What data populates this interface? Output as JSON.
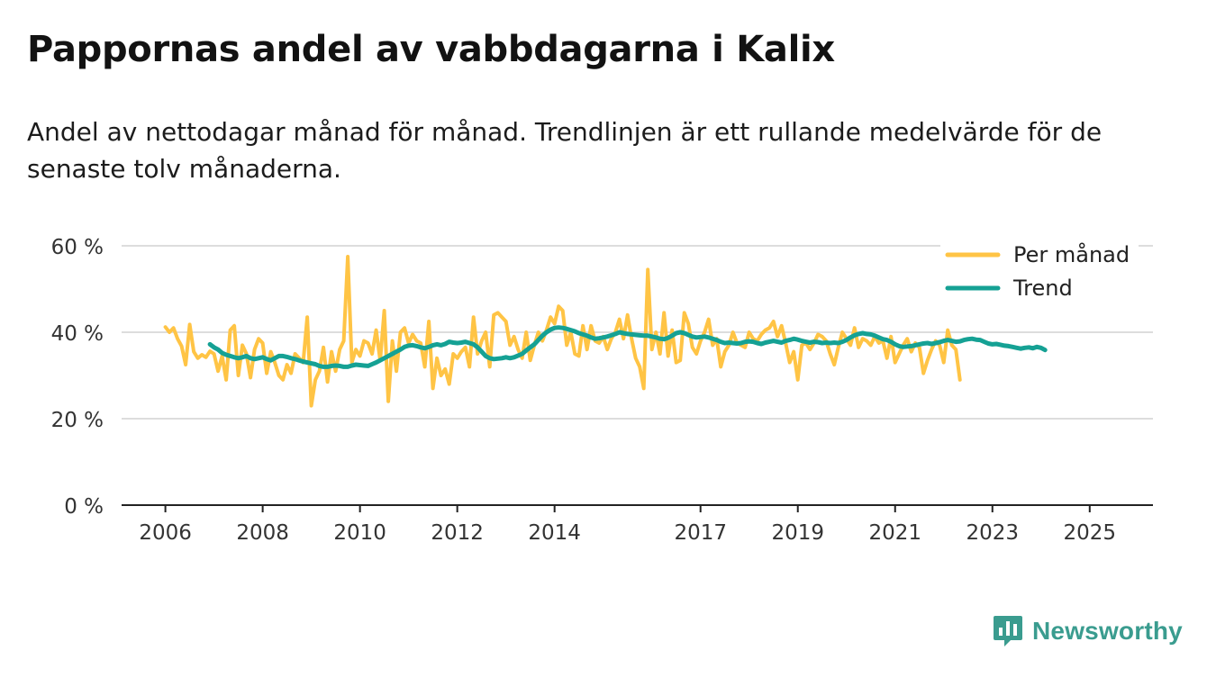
{
  "title": "Pappornas andel av vabbdagarna i Kalix",
  "subtitle": "Andel av nettodagar månad för månad. Trendlinjen är ett rullande medelvärde för de senaste tolv månaderna.",
  "brand": "Newsworthy",
  "colors": {
    "monthly": "#ffc445",
    "trend": "#15a194",
    "grid": "#dddddd",
    "axis": "#222222",
    "brand": "#3a9c8f"
  },
  "chart_data": {
    "type": "line",
    "x_unit": "year",
    "xlim": [
      2005.1,
      2026.3
    ],
    "ylim": [
      0,
      60
    ],
    "y_ticks": [
      0,
      20,
      40,
      60
    ],
    "y_tick_labels": [
      "0 %",
      "20 %",
      "40 %",
      "60 %"
    ],
    "x_ticks": [
      2006,
      2008,
      2010,
      2012,
      2014,
      2017,
      2019,
      2021,
      2023,
      2025
    ],
    "x_tick_labels": [
      "2006",
      "2008",
      "2010",
      "2012",
      "2014",
      "2017",
      "2019",
      "2021",
      "2023",
      "2025"
    ],
    "legend_position": "top-right",
    "series": [
      {
        "name": "Per månad",
        "x_start": 2006.0,
        "step": 0.08333,
        "values": [
          41.2,
          40.0,
          41.0,
          38.5,
          36.8,
          32.5,
          41.8,
          35.5,
          34.0,
          34.8,
          34.2,
          35.6,
          35.0,
          31.0,
          34.5,
          29.0,
          40.5,
          41.5,
          30.0,
          37.0,
          35.0,
          29.5,
          36.0,
          38.5,
          37.5,
          30.5,
          35.5,
          33.0,
          30.0,
          29.0,
          32.5,
          30.5,
          35.0,
          34.0,
          33.0,
          43.5,
          23.0,
          29.0,
          31.0,
          36.5,
          28.5,
          35.5,
          31.0,
          36.0,
          38.0,
          57.5,
          33.0,
          36.0,
          34.5,
          38.0,
          37.5,
          35.0,
          40.5,
          33.5,
          45.0,
          24.0,
          38.0,
          31.0,
          40.0,
          41.0,
          37.5,
          39.5,
          38.0,
          37.5,
          32.0,
          42.5,
          27.0,
          34.0,
          30.0,
          31.5,
          28.0,
          35.0,
          34.0,
          35.5,
          36.5,
          32.0,
          43.5,
          35.0,
          38.0,
          40.0,
          32.0,
          44.0,
          44.5,
          43.5,
          42.5,
          37.0,
          39.0,
          36.0,
          34.0,
          40.0,
          33.5,
          37.0,
          40.0,
          38.0,
          40.5,
          43.5,
          42.0,
          46.0,
          45.0,
          37.0,
          40.0,
          35.0,
          34.5,
          41.5,
          36.0,
          41.5,
          38.0,
          37.5,
          39.0,
          36.0,
          38.5,
          40.0,
          43.0,
          38.5,
          44.0,
          38.5,
          34.0,
          32.0,
          27.0,
          54.5,
          36.0,
          40.0,
          35.0,
          44.5,
          34.5,
          40.5,
          33.0,
          33.5,
          44.5,
          42.0,
          36.5,
          35.0,
          38.0,
          40.0,
          43.0,
          37.0,
          38.5,
          32.0,
          35.5,
          37.0,
          40.0,
          37.5,
          37.0,
          36.5,
          40.0,
          38.5,
          38.0,
          39.5,
          40.5,
          41.0,
          42.5,
          39.0,
          41.5,
          37.5,
          33.0,
          35.5,
          29.0,
          37.0,
          37.5,
          36.0,
          37.5,
          39.5,
          39.0,
          38.0,
          35.0,
          32.5,
          36.5,
          40.0,
          38.5,
          37.0,
          41.0,
          36.5,
          38.5,
          38.0,
          37.0,
          39.0,
          37.5,
          38.0,
          34.0,
          39.0,
          33.0,
          35.0,
          37.0,
          38.5,
          35.5,
          37.5,
          36.5,
          30.5,
          33.5,
          36.0,
          38.0,
          37.0,
          33.0,
          40.5,
          37.0,
          36.0,
          29.0
        ]
      },
      {
        "name": "Trend",
        "x_start": 2006.9167,
        "step": 0.08333,
        "values": [
          37.2,
          36.5,
          36.0,
          35.2,
          34.8,
          34.5,
          34.2,
          34.0,
          34.2,
          34.5,
          34.0,
          33.8,
          34.0,
          34.2,
          33.8,
          33.5,
          34.0,
          34.5,
          34.5,
          34.3,
          34.0,
          33.8,
          33.5,
          33.2,
          33.0,
          32.8,
          32.6,
          32.2,
          32.0,
          32.0,
          32.2,
          32.3,
          32.2,
          32.0,
          32.0,
          32.3,
          32.5,
          32.4,
          32.3,
          32.2,
          32.6,
          33.0,
          33.5,
          34.0,
          34.5,
          35.0,
          35.5,
          36.0,
          36.6,
          36.9,
          37.0,
          36.8,
          36.5,
          36.3,
          36.6,
          37.0,
          37.2,
          37.0,
          37.3,
          37.8,
          37.6,
          37.5,
          37.6,
          37.8,
          37.5,
          37.2,
          36.5,
          35.5,
          34.5,
          34.0,
          33.8,
          33.9,
          34.0,
          34.2,
          34.0,
          34.2,
          34.6,
          35.0,
          35.8,
          36.5,
          37.2,
          38.2,
          39.2,
          40.0,
          40.6,
          41.0,
          41.1,
          41.0,
          40.8,
          40.5,
          40.2,
          39.8,
          39.5,
          39.2,
          38.8,
          38.5,
          38.6,
          38.8,
          39.0,
          39.3,
          39.6,
          40.0,
          39.8,
          39.6,
          39.5,
          39.4,
          39.3,
          39.2,
          39.2,
          39.0,
          38.8,
          38.5,
          38.4,
          38.7,
          39.2,
          39.8,
          40.0,
          39.8,
          39.4,
          39.0,
          38.8,
          38.9,
          39.0,
          38.8,
          38.5,
          38.2,
          37.8,
          37.5,
          37.6,
          37.5,
          37.4,
          37.5,
          37.8,
          37.9,
          37.8,
          37.5,
          37.3,
          37.6,
          37.8,
          38.0,
          37.8,
          37.6,
          38.0,
          38.2,
          38.5,
          38.3,
          38.0,
          37.8,
          37.6,
          37.8,
          37.7,
          37.5,
          37.6,
          37.5,
          37.6,
          37.5,
          37.8,
          38.2,
          38.8,
          39.3,
          39.6,
          39.8,
          39.6,
          39.5,
          39.2,
          38.8,
          38.4,
          38.2,
          37.8,
          37.2,
          36.8,
          36.6,
          36.7,
          36.8,
          37.0,
          37.2,
          37.4,
          37.5,
          37.3,
          37.5,
          37.7,
          38.0,
          38.2,
          38.0,
          37.8,
          37.9,
          38.2,
          38.4,
          38.5,
          38.3,
          38.2,
          37.8,
          37.4,
          37.2,
          37.3,
          37.1,
          36.9,
          36.8,
          36.6,
          36.4,
          36.2,
          36.4,
          36.5,
          36.3,
          36.6,
          36.4,
          35.9
        ]
      }
    ]
  }
}
